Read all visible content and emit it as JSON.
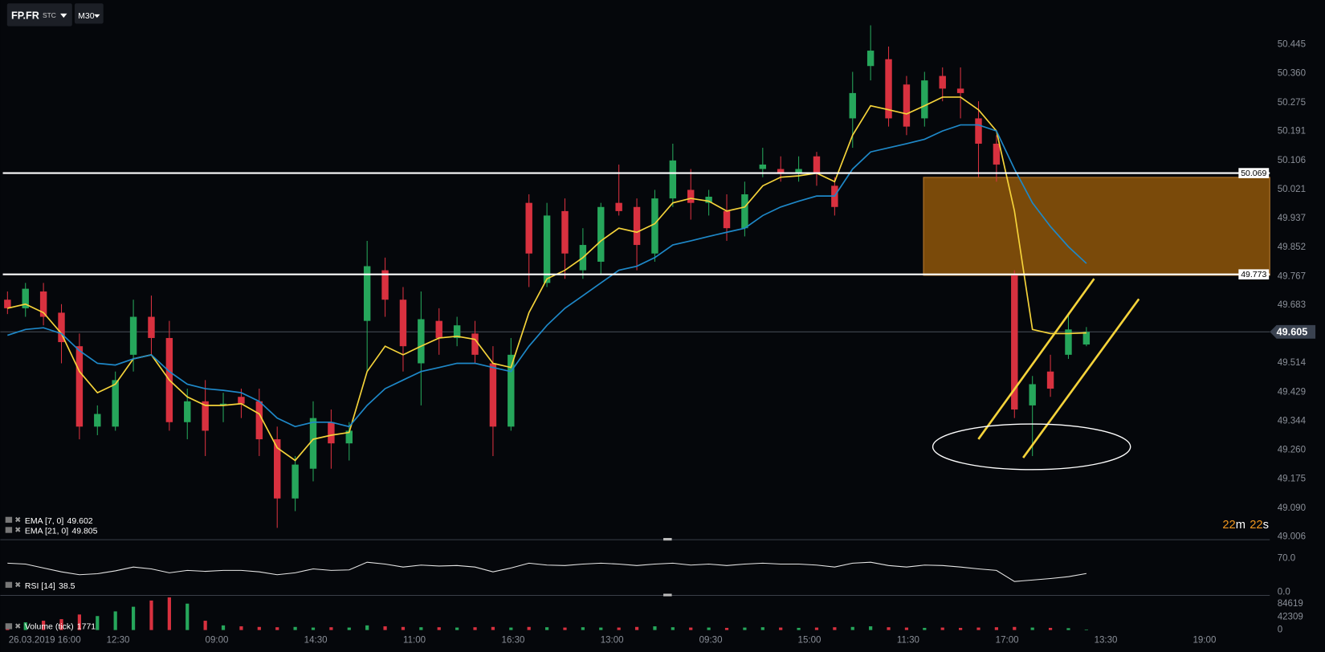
{
  "toolbar": {
    "symbol": "FP.FR",
    "market": "STC",
    "timeframe": "M30"
  },
  "countdown": {
    "minutes": 22,
    "minutes_unit": "m",
    "seconds": 22,
    "seconds_unit": "s"
  },
  "chart_data": [
    {
      "type": "candlestick",
      "up_color": "#26a65b",
      "down_color": "#d8313f",
      "open": [
        49.699,
        49.674,
        49.723,
        49.661,
        49.563,
        49.328,
        49.328,
        49.538,
        49.649,
        49.587,
        49.341,
        49.402,
        49.39,
        49.415,
        49.402,
        49.291,
        49.118,
        49.205,
        49.341,
        49.279,
        49.637,
        49.785,
        49.699,
        49.513,
        49.637,
        49.587,
        49.6,
        49.513,
        49.328,
        49.982,
        49.748,
        49.958,
        49.785,
        49.81,
        49.982,
        49.97,
        49.834,
        49.995,
        50.02,
        49.982,
        49.958,
        49.908,
        50.081,
        50.081,
        50.069,
        50.118,
        50.032,
        50.229,
        50.382,
        50.402,
        50.328,
        50.229,
        50.353,
        50.316,
        50.229,
        50.155,
        49.773,
        49.39,
        49.489,
        49.538,
        49.568
      ],
      "high": [
        49.723,
        49.748,
        49.748,
        49.686,
        49.6,
        49.39,
        49.489,
        49.699,
        49.711,
        49.637,
        49.439,
        49.464,
        49.427,
        49.439,
        49.439,
        49.328,
        49.242,
        49.402,
        49.378,
        49.341,
        49.871,
        49.822,
        49.736,
        49.723,
        49.674,
        49.649,
        49.637,
        49.563,
        49.587,
        50.007,
        49.982,
        49.995,
        49.908,
        49.982,
        50.094,
        49.995,
        50.02,
        50.155,
        50.081,
        50.02,
        50.007,
        50.044,
        50.143,
        50.118,
        50.118,
        50.131,
        50.057,
        50.365,
        50.501,
        50.439,
        50.353,
        50.365,
        50.378,
        50.378,
        50.279,
        50.18,
        49.785,
        49.476,
        49.538,
        49.661,
        49.619
      ],
      "low": [
        49.657,
        49.649,
        49.624,
        49.513,
        49.291,
        49.303,
        49.316,
        49.489,
        49.538,
        49.316,
        49.291,
        49.242,
        49.341,
        49.353,
        49.242,
        49.032,
        49.081,
        49.168,
        49.205,
        49.229,
        49.489,
        49.649,
        49.489,
        49.39,
        49.538,
        49.563,
        49.513,
        49.242,
        49.316,
        49.736,
        49.736,
        49.76,
        49.76,
        49.773,
        49.945,
        49.785,
        49.81,
        49.97,
        49.933,
        49.945,
        49.871,
        49.884,
        50.057,
        50.044,
        50.044,
        50.032,
        49.945,
        50.143,
        50.34,
        50.205,
        50.18,
        50.205,
        50.279,
        50.229,
        50.057,
        50.044,
        49.353,
        49.242,
        49.415,
        49.526,
        49.563
      ],
      "close": [
        49.674,
        49.731,
        49.649,
        49.575,
        49.328,
        49.365,
        49.464,
        49.649,
        49.587,
        49.341,
        49.402,
        49.316,
        49.395,
        49.395,
        49.291,
        49.118,
        49.217,
        49.353,
        49.279,
        49.316,
        49.797,
        49.699,
        49.563,
        49.642,
        49.587,
        49.624,
        49.538,
        49.328,
        49.538,
        49.834,
        49.945,
        49.834,
        49.859,
        49.97,
        49.958,
        49.859,
        49.995,
        50.106,
        49.982,
        50.0,
        49.908,
        50.007,
        50.094,
        50.069,
        50.081,
        50.069,
        49.97,
        50.303,
        50.427,
        50.229,
        50.205,
        50.34,
        50.316,
        50.303,
        50.155,
        50.094,
        49.378,
        49.452,
        49.439,
        49.612,
        49.605
      ],
      "series": [
        {
          "name": "EMA [7, 0]",
          "color": "#f5d33a",
          "last_value": 49.602,
          "values": [
            49.674,
            49.686,
            49.661,
            49.6,
            49.489,
            49.427,
            49.452,
            49.526,
            49.538,
            49.464,
            49.415,
            49.39,
            49.39,
            49.395,
            49.365,
            49.266,
            49.229,
            49.291,
            49.303,
            49.311,
            49.489,
            49.563,
            49.538,
            49.563,
            49.587,
            49.592,
            49.583,
            49.513,
            49.501,
            49.661,
            49.76,
            49.785,
            49.822,
            49.871,
            49.908,
            49.896,
            49.921,
            49.982,
            49.995,
            49.987,
            49.958,
            49.97,
            50.032,
            50.057,
            50.061,
            50.069,
            50.044,
            50.18,
            50.266,
            50.254,
            50.242,
            50.266,
            50.291,
            50.291,
            50.254,
            50.192,
            49.958,
            49.612,
            49.6,
            49.6,
            49.602
          ]
        },
        {
          "name": "EMA [21, 0]",
          "color": "#1e88c8",
          "last_value": 49.805,
          "values": [
            49.595,
            49.612,
            49.617,
            49.6,
            49.55,
            49.513,
            49.508,
            49.526,
            49.538,
            49.489,
            49.452,
            49.439,
            49.434,
            49.427,
            49.402,
            49.353,
            49.328,
            49.341,
            49.341,
            49.328,
            49.39,
            49.439,
            49.464,
            49.489,
            49.501,
            49.513,
            49.513,
            49.501,
            49.489,
            49.563,
            49.624,
            49.674,
            49.711,
            49.748,
            49.785,
            49.797,
            49.822,
            49.859,
            49.871,
            49.884,
            49.896,
            49.908,
            49.945,
            49.97,
            49.987,
            50.002,
            50.002,
            50.081,
            50.131,
            50.143,
            50.155,
            50.168,
            50.192,
            50.21,
            50.21,
            50.192,
            50.081,
            49.982,
            49.913,
            49.854,
            49.805
          ]
        }
      ],
      "levels": [
        50.069,
        49.773
      ],
      "current_price": 49.605,
      "ylim": [
        49.0,
        50.575
      ],
      "yticks": [
        50.445,
        {
          "value": 50.36,
          "label": "50.360"
        },
        50.275,
        50.191,
        50.106,
        50.021,
        49.937,
        49.852,
        49.767,
        49.683,
        49.514,
        49.429,
        49.344,
        {
          "value": 49.26,
          "label": "49.260"
        },
        49.175,
        {
          "value": 49.09,
          "label": "49.090"
        },
        49.006
      ],
      "xlim": [
        -0.4,
        70.2
      ],
      "xticks": [
        {
          "value": 2.07,
          "label": "26.03.2019 16:00"
        },
        {
          "value": 6.15,
          "label": "12:30"
        },
        {
          "value": 11.64,
          "label": "09:00"
        },
        {
          "value": 17.14,
          "label": "14:30"
        },
        {
          "value": 22.63,
          "label": "11:00"
        },
        {
          "value": 28.12,
          "label": "16:30"
        },
        {
          "value": 33.62,
          "label": "13:00"
        },
        {
          "value": 39.11,
          "label": "09:30"
        },
        {
          "value": 44.6,
          "label": "15:00"
        },
        {
          "value": 50.09,
          "label": "11:30"
        },
        {
          "value": 55.59,
          "label": "17:00"
        },
        {
          "value": 61.08,
          "label": "13:30"
        },
        {
          "value": 66.57,
          "label": "19:00"
        }
      ]
    },
    {
      "type": "line",
      "series": [
        {
          "name": "RSI [14]",
          "color": "#e6e6e6",
          "values": [
            60,
            58,
            50,
            42,
            36,
            38,
            44,
            52,
            48,
            40,
            45,
            43,
            45,
            45,
            42,
            36,
            40,
            48,
            45,
            46,
            62,
            58,
            52,
            56,
            54,
            55,
            52,
            42,
            50,
            60,
            56,
            55,
            58,
            60,
            58,
            55,
            58,
            60,
            56,
            58,
            55,
            58,
            60,
            58,
            58,
            56,
            52,
            60,
            62,
            55,
            52,
            56,
            55,
            52,
            48,
            45,
            22,
            25,
            28,
            32,
            38.5
          ]
        }
      ],
      "legend_value": 38.5,
      "ylim": [
        0,
        100
      ],
      "yticks": [
        {
          "value": 70,
          "label": "70.0"
        },
        {
          "value": 0,
          "label": "0.0"
        }
      ]
    },
    {
      "type": "bar",
      "series": [
        {
          "name": "Volume (tick)",
          "values": [
            20000,
            25000,
            30000,
            35000,
            50000,
            45000,
            60000,
            75000,
            95000,
            105000,
            85000,
            30000,
            15000,
            12000,
            10000,
            9000,
            10000,
            8000,
            9000,
            8000,
            15000,
            12000,
            10000,
            9000,
            9000,
            8000,
            9000,
            10000,
            8000,
            10000,
            9000,
            8000,
            9000,
            8000,
            8000,
            10000,
            12000,
            9000,
            8000,
            8000,
            7000,
            8000,
            9000,
            8000,
            7000,
            8000,
            9000,
            10000,
            12000,
            9000,
            8000,
            7000,
            8000,
            7000,
            8000,
            9000,
            10000,
            8000,
            7000,
            6000,
            1771
          ]
        }
      ],
      "legend_value": 1771,
      "ylim": [
        0,
        106000
      ],
      "yticks": [
        0,
        42309,
        84619
      ]
    }
  ]
}
